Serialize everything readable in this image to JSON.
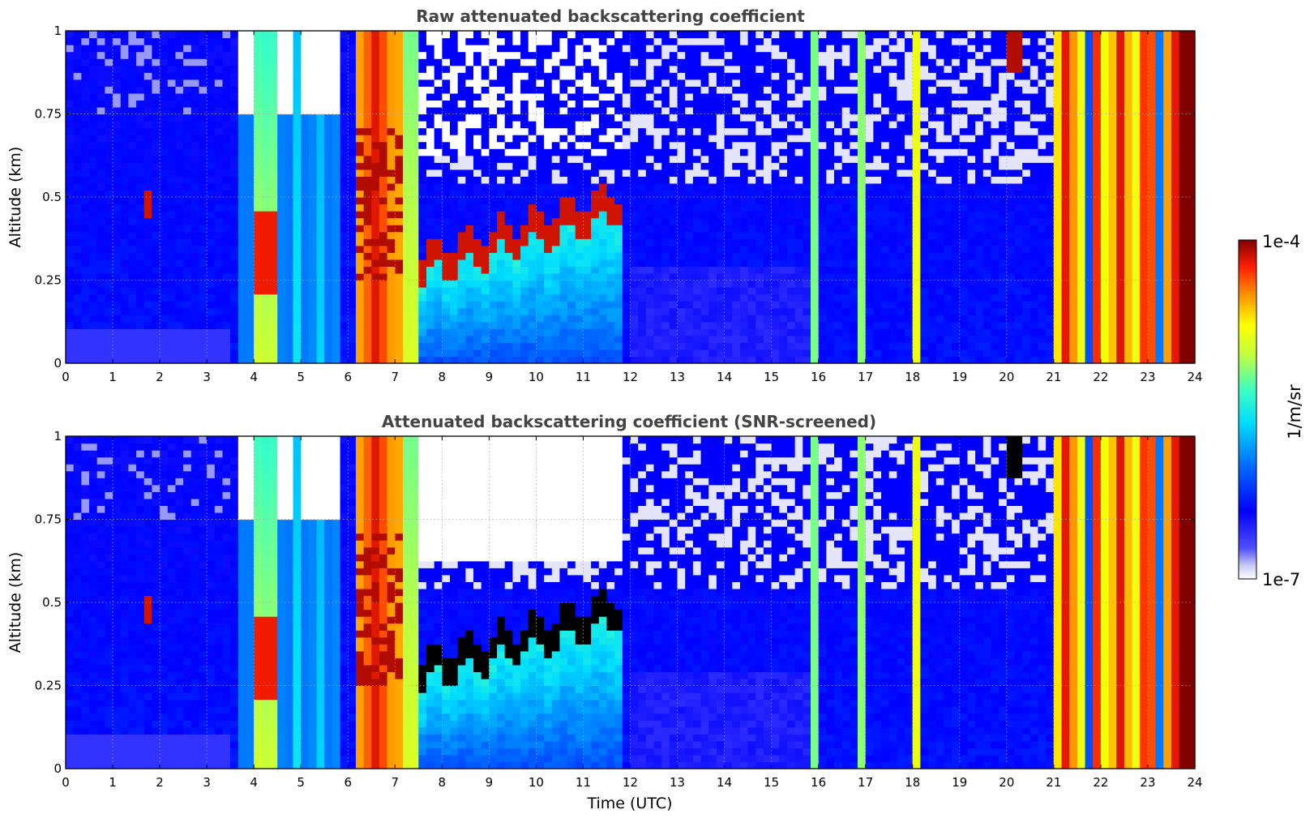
{
  "chart_data": [
    {
      "type": "heatmap",
      "title": "Raw attenuated backscattering coefficient",
      "xlabel": "",
      "ylabel": "Altitude (km)",
      "xlim": [
        0,
        24
      ],
      "ylim": [
        0,
        1
      ],
      "xticks": [
        "0",
        "1",
        "2",
        "3",
        "4",
        "5",
        "6",
        "7",
        "8",
        "9",
        "10",
        "11",
        "12",
        "13",
        "14",
        "15",
        "16",
        "17",
        "18",
        "19",
        "20",
        "21",
        "22",
        "23",
        "24"
      ],
      "yticks": [
        "0",
        "0.25",
        "0.5",
        "0.75",
        "1"
      ],
      "grid": true,
      "colormap": "jet",
      "colorbar": {
        "label": "1/m/sr",
        "min_label": "1e-7",
        "max_label": "1e-4",
        "scale": "log"
      },
      "features": [
        {
          "t": 1.75,
          "alt_min": 0.43,
          "alt_max": 0.52,
          "level": "high"
        },
        {
          "t_range": [
            3.7,
            5.9
          ],
          "alt_min": 0.0,
          "alt_max": 1.0,
          "level": "mixed vertical streaks"
        },
        {
          "t_range": [
            6.1,
            7.1
          ],
          "alt_min": 0.0,
          "alt_max": 1.0,
          "level": "very high"
        },
        {
          "t_range": [
            7.5,
            11.9
          ],
          "cloud_base_km": [
            0.25,
            0.45
          ],
          "level": "cloud layer (high)"
        },
        {
          "t": 15.9,
          "level": "moderate streak"
        },
        {
          "t": 16.9,
          "level": "moderate streak"
        },
        {
          "t": 18.1,
          "level": "moderate streak"
        },
        {
          "t": 20.2,
          "alt_min": 0.9,
          "alt_max": 1.0,
          "level": "very high"
        },
        {
          "t_range": [
            21.0,
            23.7
          ],
          "alt_min": 0.0,
          "alt_max": 1.0,
          "level": "high (rain/fog)"
        }
      ]
    },
    {
      "type": "heatmap",
      "title": "Attenuated backscattering coefficient (SNR-screened)",
      "xlabel": "Time (UTC)",
      "ylabel": "Altitude (km)",
      "xlim": [
        0,
        24
      ],
      "ylim": [
        0,
        1
      ],
      "xticks": [
        "0",
        "1",
        "2",
        "3",
        "4",
        "5",
        "6",
        "7",
        "8",
        "9",
        "10",
        "11",
        "12",
        "13",
        "14",
        "15",
        "16",
        "17",
        "18",
        "19",
        "20",
        "21",
        "22",
        "23",
        "24"
      ],
      "yticks": [
        "0",
        "0.25",
        "0.5",
        "0.75",
        "1"
      ],
      "grid": true,
      "colormap": "jet",
      "colorbar": {
        "label": "1/m/sr",
        "min_label": "1e-7",
        "max_label": "1e-4",
        "scale": "log"
      },
      "features": [
        {
          "t_range": [
            7.5,
            11.9
          ],
          "cloud_base_km": [
            0.25,
            0.45
          ],
          "level": "saturated (black) above cloud base"
        },
        {
          "t_range": [
            6.5,
            12.0
          ],
          "alt_min": 0.6,
          "alt_max": 1.0,
          "level": "screened out (white)"
        }
      ]
    }
  ]
}
